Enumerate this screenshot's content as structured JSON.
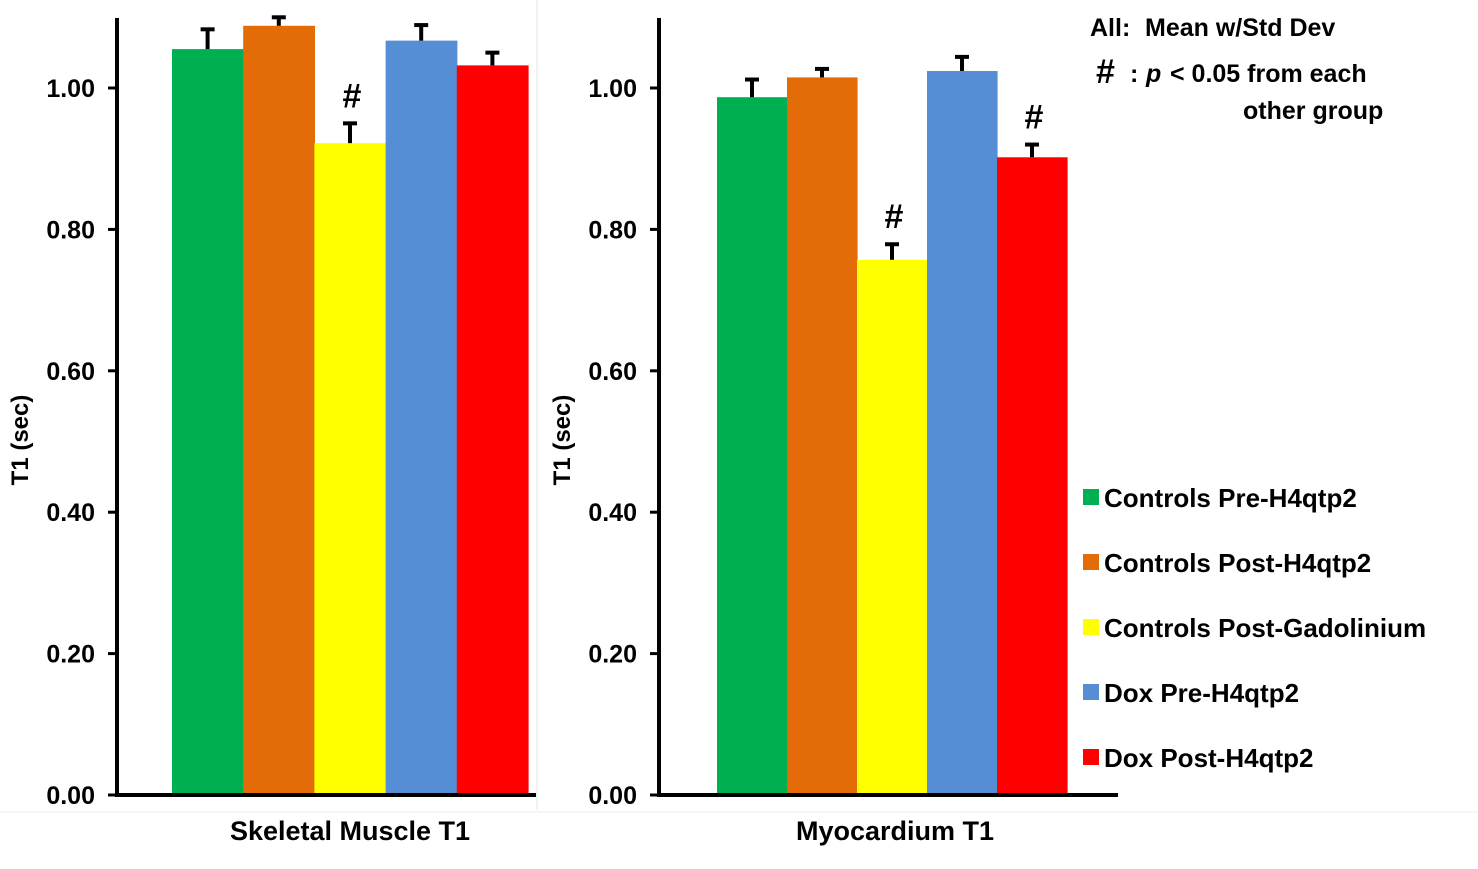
{
  "chart_data": [
    {
      "type": "bar",
      "title": "Skeletal Muscle T1",
      "ylabel": "T1 (sec)",
      "ylim": [
        0,
        1.1
      ],
      "yticks": [
        "0.00",
        "0.20",
        "0.40",
        "0.60",
        "0.80",
        "1.00"
      ],
      "ytick_values": [
        0,
        0.2,
        0.4,
        0.6,
        0.8,
        1.0
      ],
      "categories": [
        "Controls Pre-H4qtp2",
        "Controls Post-H4qtp2",
        "Controls Post-Gadolinium",
        "Dox Pre-H4qtp2",
        "Dox Post-H4qtp2"
      ],
      "values": [
        1.055,
        1.088,
        0.922,
        1.067,
        1.032
      ],
      "errors": [
        0.028,
        0.012,
        0.028,
        0.022,
        0.018
      ],
      "annotations": [
        "",
        "",
        "#",
        "",
        ""
      ]
    },
    {
      "type": "bar",
      "title": "Myocardium T1",
      "ylabel": "T1 (sec)",
      "ylim": [
        0,
        1.1
      ],
      "yticks": [
        "0.00",
        "0.20",
        "0.40",
        "0.60",
        "0.80",
        "1.00"
      ],
      "ytick_values": [
        0,
        0.2,
        0.4,
        0.6,
        0.8,
        1.0
      ],
      "categories": [
        "Controls Pre-H4qtp2",
        "Controls Post-H4qtp2",
        "Controls Post-Gadolinium",
        "Dox Pre-H4qtp2",
        "Dox Post-H4qtp2"
      ],
      "values": [
        0.987,
        1.015,
        0.757,
        1.024,
        0.902
      ],
      "errors": [
        0.025,
        0.012,
        0.022,
        0.02,
        0.018
      ],
      "annotations": [
        "",
        "",
        "#",
        "",
        "#"
      ]
    }
  ],
  "colors": [
    "#00b050",
    "#e36c09",
    "#ffff00",
    "#558ed5",
    "#ff0000"
  ],
  "legend": {
    "position": "right",
    "entries": [
      "Controls Pre-H4qtp2",
      "Controls Post-H4qtp2",
      "Controls Post-Gadolinium",
      "Dox Pre-H4qtp2",
      "Dox Post-H4qtp2"
    ]
  },
  "note": {
    "line1_label": "All:",
    "line1_text": "Mean w/Std Dev",
    "line2_symbol": "#",
    "line2_colon": ":",
    "line2_p": "p",
    "line2_text": "< 0.05 from each",
    "line3_text": "other group"
  }
}
